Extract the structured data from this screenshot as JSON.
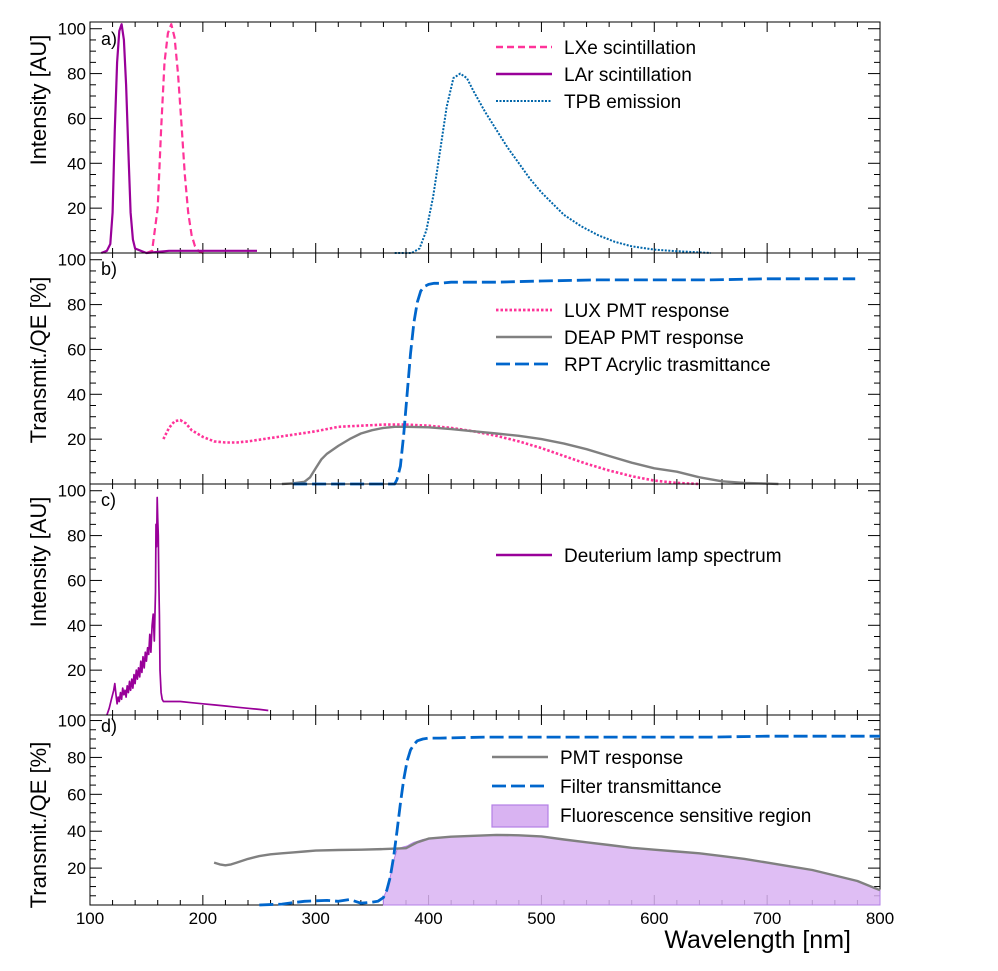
{
  "colors": {
    "lxe": "#ff3399",
    "lar": "#990099",
    "tpb": "#0066aa",
    "lux": "#ff3399",
    "deap": "#808080",
    "rpt": "#0066cc",
    "deut": "#990099",
    "pmt": "#808080",
    "filter": "#0066cc",
    "fluor_fill": "#d9b3f2",
    "fluor_stroke": "#b380e6"
  },
  "chart_data": [
    {
      "panel": "a",
      "panel_label": "a)",
      "type": "line",
      "ylabel": "Intensity [AU]",
      "xlim": [
        100,
        800
      ],
      "ylim": [
        0,
        103
      ],
      "yticks": [
        20,
        40,
        60,
        80,
        100
      ],
      "legend": [
        "LXe scintillation",
        "LAr scintillation",
        "TPB emission"
      ],
      "series": [
        {
          "name": "LXe scintillation",
          "color_key": "lxe",
          "dash": "7,4",
          "width": 2.2,
          "x": [
            150,
            155,
            160,
            163,
            166,
            169,
            172,
            175,
            178,
            181,
            184,
            187,
            190,
            193,
            196,
            200
          ],
          "y": [
            0,
            1,
            20,
            55,
            85,
            98,
            102,
            96,
            80,
            58,
            35,
            18,
            8,
            3,
            1,
            0
          ]
        },
        {
          "name": "LAr scintillation",
          "color_key": "lar",
          "dash": "",
          "width": 2.2,
          "x": [
            110,
            115,
            118,
            120,
            122,
            124,
            126,
            128,
            130,
            132,
            134,
            136,
            138,
            140,
            145,
            150,
            170,
            200,
            248
          ],
          "y": [
            0,
            1,
            4,
            18,
            55,
            85,
            99,
            102,
            95,
            75,
            45,
            18,
            6,
            2,
            1,
            0,
            1,
            1,
            1
          ]
        },
        {
          "name": "TPB emission",
          "color_key": "tpb",
          "dash": "2,1.5",
          "width": 2,
          "x": [
            370,
            385,
            392,
            398,
            404,
            410,
            416,
            422,
            428,
            434,
            440,
            450,
            460,
            470,
            480,
            490,
            500,
            510,
            520,
            535,
            550,
            565,
            580,
            600,
            620,
            650
          ],
          "y": [
            0,
            0,
            2,
            10,
            25,
            45,
            65,
            78,
            80,
            78,
            72,
            63,
            55,
            47,
            40,
            33,
            27,
            22,
            17,
            12,
            8,
            5,
            3,
            1.5,
            0.8,
            0
          ]
        }
      ]
    },
    {
      "panel": "b",
      "panel_label": "b)",
      "type": "line",
      "ylabel": "Transmit./QE [%]",
      "xlim": [
        100,
        800
      ],
      "ylim": [
        0,
        103
      ],
      "yticks": [
        20,
        40,
        60,
        80,
        100
      ],
      "legend": [
        "LUX PMT response",
        "DEAP PMT response",
        "RPT Acrylic trasmittance"
      ],
      "series": [
        {
          "name": "LUX PMT response",
          "color_key": "lux",
          "dash": "2.5,2",
          "width": 2.6,
          "x": [
            165,
            170,
            175,
            180,
            185,
            190,
            200,
            210,
            220,
            230,
            240,
            260,
            280,
            300,
            320,
            340,
            360,
            380,
            400,
            420,
            440,
            460,
            480,
            500,
            520,
            540,
            560,
            580,
            600,
            620,
            640
          ],
          "y": [
            20,
            25,
            28,
            28.5,
            27,
            24,
            21,
            19,
            18.5,
            18.5,
            19,
            20.5,
            22,
            23.5,
            25.5,
            26,
            26.5,
            26.5,
            26,
            25,
            23.5,
            21.5,
            19,
            16,
            12.5,
            9,
            6,
            3.5,
            1.5,
            0.5,
            0
          ]
        },
        {
          "name": "DEAP PMT response",
          "color_key": "deap",
          "dash": "",
          "width": 2.4,
          "x": [
            270,
            280,
            290,
            295,
            300,
            305,
            310,
            320,
            330,
            340,
            350,
            360,
            370,
            380,
            400,
            420,
            440,
            460,
            480,
            500,
            520,
            540,
            560,
            580,
            600,
            620,
            640,
            660,
            680,
            700,
            710
          ],
          "y": [
            0,
            0.3,
            1,
            3,
            7,
            11,
            13.5,
            17,
            20,
            22.5,
            24,
            25,
            25.5,
            25.5,
            25.3,
            24.5,
            23.5,
            22.5,
            21.5,
            20,
            18,
            15.5,
            12.5,
            9.5,
            7,
            5.5,
            3,
            1.2,
            0.5,
            0.2,
            0
          ]
        },
        {
          "name": "RPT Acrylic trasmittance",
          "color_key": "rpt",
          "dash": "14,5",
          "width": 2.8,
          "x": [
            280,
            300,
            320,
            340,
            360,
            370,
            372,
            375,
            378,
            381,
            384,
            387,
            390,
            393,
            396,
            400,
            405,
            410,
            420,
            440,
            460,
            500,
            550,
            600,
            650,
            700,
            750,
            778
          ],
          "y": [
            0,
            0,
            0,
            0,
            0,
            0,
            2,
            8,
            22,
            40,
            58,
            72,
            81,
            86,
            88,
            89,
            89.5,
            89.5,
            90,
            90,
            90,
            90.5,
            91,
            91,
            91,
            91.5,
            91.5,
            91.5
          ]
        }
      ]
    },
    {
      "panel": "c",
      "panel_label": "c)",
      "type": "line",
      "ylabel": "Intensity [AU]",
      "xlim": [
        100,
        800
      ],
      "ylim": [
        0,
        103
      ],
      "yticks": [
        20,
        40,
        60,
        80,
        100
      ],
      "legend": [
        "Deuterium lamp spectrum"
      ],
      "series": [
        {
          "name": "Deuterium lamp spectrum",
          "color_key": "deut",
          "dash": "",
          "width": 1.7,
          "x": [
            115,
            117,
            119,
            121,
            122,
            123,
            124,
            125,
            126,
            127,
            128,
            129,
            130,
            131,
            132,
            133,
            134,
            135,
            136,
            137,
            138,
            139,
            140,
            141,
            142,
            143,
            144,
            145,
            146,
            147,
            148,
            149,
            150,
            151,
            152,
            153,
            154,
            155,
            156,
            157,
            158,
            158.5,
            159,
            159.5,
            160,
            160.5,
            161,
            161.5,
            162,
            163,
            164,
            165,
            167,
            170,
            180,
            190,
            200,
            210,
            220,
            230,
            240,
            250,
            258
          ],
          "y": [
            0,
            3,
            7,
            11,
            14,
            9,
            5,
            8,
            6,
            10,
            7,
            12,
            9,
            11,
            8,
            13,
            10,
            15,
            11,
            16,
            12,
            18,
            14,
            20,
            16,
            21,
            17,
            24,
            19,
            26,
            21,
            28,
            24,
            30,
            27,
            36,
            28,
            40,
            45,
            33,
            55,
            85,
            75,
            97,
            88,
            80,
            60,
            45,
            20,
            10,
            7,
            6,
            6,
            6,
            6,
            5.5,
            5,
            4.5,
            4,
            3.5,
            3,
            2.5,
            2
          ]
        }
      ]
    },
    {
      "panel": "d",
      "panel_label": "d)",
      "type": "area",
      "xlabel": "Wavelength [nm]",
      "ylabel": "Transmit./QE [%]",
      "xlim": [
        100,
        800
      ],
      "ylim": [
        0,
        103
      ],
      "xticks": [
        100,
        200,
        300,
        400,
        500,
        600,
        700,
        800
      ],
      "yticks": [
        20,
        40,
        60,
        80,
        100
      ],
      "legend": [
        "PMT response",
        "Filter transmittance",
        "Fluorescence sensitive region"
      ],
      "series": [
        {
          "name": "PMT response",
          "color_key": "pmt",
          "dash": "",
          "width": 2.4,
          "x": [
            210,
            215,
            220,
            225,
            230,
            240,
            250,
            260,
            270,
            280,
            290,
            300,
            320,
            340,
            360,
            380,
            390,
            400,
            420,
            440,
            460,
            480,
            500,
            520,
            540,
            560,
            580,
            600,
            620,
            640,
            660,
            680,
            700,
            720,
            740,
            760,
            780,
            800
          ],
          "y": [
            23,
            22,
            21.5,
            22,
            23,
            25,
            26.5,
            27.5,
            28,
            28.5,
            29,
            29.5,
            29.8,
            30,
            30.3,
            30.8,
            34,
            36,
            37,
            37.5,
            38,
            37.8,
            37.2,
            35.5,
            34,
            32.5,
            31,
            30,
            29,
            28,
            26.5,
            25,
            23,
            21,
            19,
            16,
            13,
            8
          ]
        },
        {
          "name": "Filter transmittance",
          "color_key": "filter",
          "dash": "14,5",
          "width": 2.8,
          "x": [
            250,
            270,
            290,
            310,
            320,
            330,
            340,
            350,
            355,
            360,
            363,
            366,
            369,
            372,
            375,
            378,
            381,
            384,
            387,
            390,
            395,
            400,
            410,
            450,
            500,
            550,
            600,
            650,
            700,
            750,
            800
          ],
          "y": [
            0,
            0.5,
            2,
            2.5,
            2,
            3,
            1,
            1.5,
            2,
            4,
            8,
            15,
            26,
            40,
            55,
            68,
            78,
            84,
            87,
            89,
            90,
            90.5,
            90.5,
            91,
            91,
            91,
            91,
            91,
            91.5,
            91.5,
            91.5
          ]
        },
        {
          "name": "Fluorescence sensitive region",
          "color_key": "fluor_fill",
          "fill": true,
          "x": [
            360,
            363,
            366,
            369,
            372,
            375,
            378,
            381,
            384,
            387,
            390,
            395,
            400,
            420,
            440,
            460,
            480,
            500,
            520,
            540,
            560,
            580,
            600,
            620,
            640,
            660,
            680,
            700,
            720,
            740,
            760,
            780,
            800
          ],
          "y": [
            4,
            8,
            15,
            24,
            30,
            31,
            31.5,
            32,
            33,
            34,
            34.5,
            35.5,
            36,
            37,
            37.5,
            38,
            37.8,
            37.2,
            35.5,
            34,
            32.5,
            31,
            30,
            29,
            28,
            26.5,
            25,
            23,
            21,
            19,
            16,
            13,
            8
          ]
        }
      ]
    }
  ]
}
